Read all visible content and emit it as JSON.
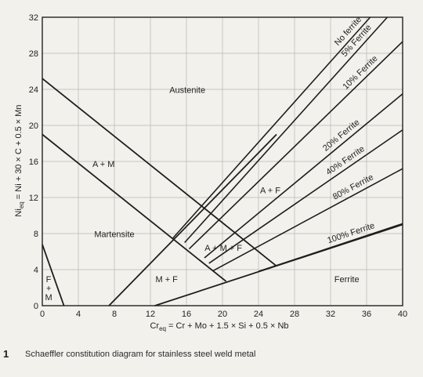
{
  "chart_data": {
    "type": "line",
    "caption_number": "1",
    "caption": "Schaeffler constitution diagram for stainless steel weld metal",
    "xlabel_main": "Cr",
    "xlabel_sub": "eq",
    "xlabel_rest": " = Cr + Mo + 1.5 × Si + 0.5 × Nb",
    "ylabel_main": "Ni",
    "ylabel_sub": "eq",
    "ylabel_rest": " = Ni + 30 × C + 0.5 × Mn",
    "xlim": [
      0,
      40
    ],
    "ylim": [
      0,
      32
    ],
    "xticks": [
      0,
      4,
      8,
      12,
      16,
      20,
      24,
      28,
      32,
      36,
      40
    ],
    "yticks": [
      0,
      4,
      8,
      12,
      16,
      20,
      24,
      28,
      32
    ],
    "grid": true,
    "boundaries": [
      {
        "id": "austenite-boundary",
        "points": [
          [
            0,
            25.2
          ],
          [
            26,
            4.4
          ]
        ]
      },
      {
        "id": "am-boundary",
        "points": [
          [
            0,
            19
          ],
          [
            20.4,
            2.7
          ]
        ]
      },
      {
        "id": "martensite-ferrite-line",
        "points": [
          [
            0,
            6.8
          ],
          [
            2.4,
            0
          ]
        ]
      },
      {
        "id": "lower-boundary",
        "points": [
          [
            7.4,
            0
          ],
          [
            26,
            19
          ]
        ]
      },
      {
        "id": "ferrite-lower-boundary",
        "points": [
          [
            12.5,
            0
          ],
          [
            40,
            9
          ]
        ]
      }
    ],
    "series": [
      {
        "name": "No ferrite",
        "points": [
          [
            14.5,
            7.5
          ],
          [
            36.4,
            32
          ]
        ]
      },
      {
        "name": "5% Ferrite",
        "points": [
          [
            15.8,
            7.0
          ],
          [
            38.3,
            32
          ]
        ]
      },
      {
        "name": "10% Ferrite",
        "points": [
          [
            16.3,
            6.3
          ],
          [
            40,
            29.3
          ]
        ]
      },
      {
        "name": "20% Ferrite",
        "points": [
          [
            18,
            5.3
          ],
          [
            40,
            23.5
          ]
        ]
      },
      {
        "name": "40% Ferrite",
        "points": [
          [
            18.5,
            4.7
          ],
          [
            40,
            19.5
          ]
        ]
      },
      {
        "name": "80% Ferrite",
        "points": [
          [
            19,
            3.9
          ],
          [
            40,
            15.2
          ]
        ]
      },
      {
        "name": "100% Ferrite",
        "points": [
          [
            24,
            3.8
          ],
          [
            40,
            9.1
          ]
        ]
      }
    ],
    "region_labels": [
      {
        "text": "Austenite",
        "x": 16.1,
        "y": 23.6
      },
      {
        "text": "A + M",
        "x": 6.8,
        "y": 15.4
      },
      {
        "text": "Martensite",
        "x": 8.0,
        "y": 7.6
      },
      {
        "text": "A + F",
        "x": 25.3,
        "y": 12.5
      },
      {
        "text": "A + M + F",
        "x": 20.1,
        "y": 6.1
      },
      {
        "text": "M + F",
        "x": 13.8,
        "y": 2.6
      },
      {
        "text": "Ferrite",
        "x": 33.8,
        "y": 2.6
      },
      {
        "text": "F",
        "x": 0.7,
        "y": 2.6
      },
      {
        "text": "+",
        "x": 0.7,
        "y": 1.6
      },
      {
        "text": "M",
        "x": 0.7,
        "y": 0.6
      }
    ]
  }
}
